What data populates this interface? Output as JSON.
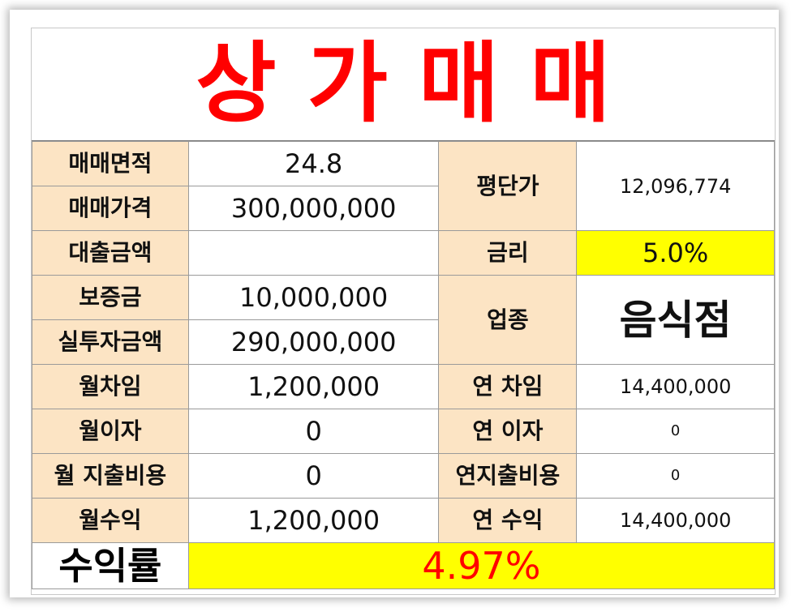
{
  "title": "상가매매",
  "rows": {
    "area_label": "매매면적",
    "area_value": "24.8",
    "price_label": "매매가격",
    "price_value": "300,000,000",
    "unit_price_label": "평단가",
    "unit_price_value": "12,096,774",
    "loan_label": "대출금액",
    "loan_value": "",
    "rate_label": "금리",
    "rate_value": "5.0%",
    "deposit_label": "보증금",
    "deposit_value": "10,000,000",
    "actual_invest_label": "실투자금액",
    "actual_invest_value": "290,000,000",
    "business_label": "업종",
    "business_value": "음식점",
    "monthly_rent_label": "월차임",
    "monthly_rent_value": "1,200,000",
    "annual_rent_label": "연 차임",
    "annual_rent_value": "14,400,000",
    "monthly_interest_label": "월이자",
    "monthly_interest_value": "0",
    "annual_interest_label": "연 이자",
    "annual_interest_value": "0",
    "monthly_expense_label": "월 지출비용",
    "monthly_expense_value": "0",
    "annual_expense_label": "연지출비용",
    "annual_expense_value": "0",
    "monthly_income_label": "월수익",
    "monthly_income_value": "1,200,000",
    "annual_income_label": "연 수익",
    "annual_income_value": "14,400,000"
  },
  "yield": {
    "label": "수익률",
    "value": "4.97%"
  },
  "colors": {
    "title": "#ff0000",
    "label_bg": "#fce4c4",
    "highlight": "#ffff00"
  }
}
